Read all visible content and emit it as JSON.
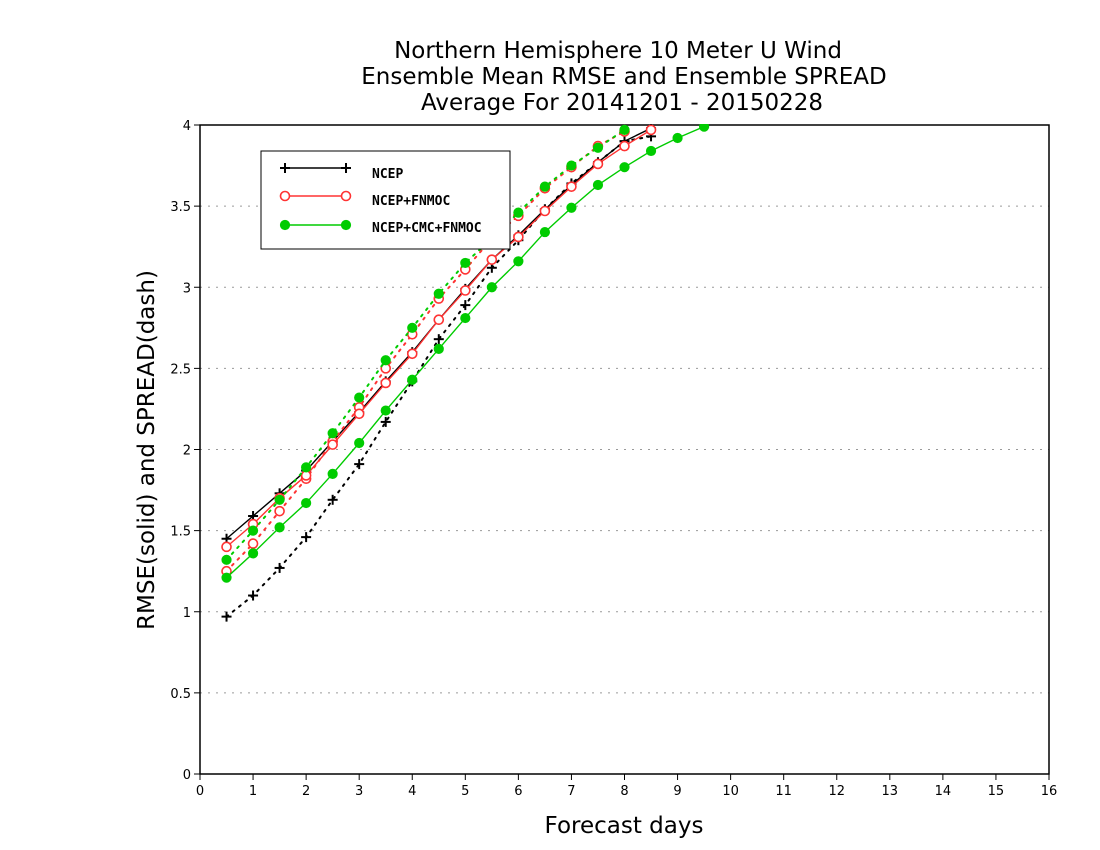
{
  "chart_data": {
    "type": "line",
    "title": [
      "Northern Hemisphere 10 Meter U Wind",
      "Ensemble Mean RMSE and Ensemble SPREAD",
      "Average For 20141201 - 20150228"
    ],
    "xlabel": "Forecast days",
    "ylabel": "RMSE(solid) and SPREAD(dash)",
    "xlim": [
      0,
      16
    ],
    "ylim": [
      0,
      4
    ],
    "xticks": [
      "0",
      "1",
      "2",
      "3",
      "4",
      "5",
      "6",
      "7",
      "8",
      "9",
      "10",
      "11",
      "12",
      "13",
      "14",
      "15",
      "16"
    ],
    "yticks": [
      "0",
      "0.5",
      "1",
      "1.5",
      "2",
      "2.5",
      "3",
      "3.5",
      "4"
    ],
    "grid": "horizontal dotted",
    "legend_position": "top-left",
    "series": [
      {
        "name": "NCEP",
        "color": "#000000",
        "marker": "plus",
        "rmse_x": [
          0.5,
          1,
          1.5,
          2,
          2.5,
          3,
          3.5,
          4,
          4.5,
          5,
          5.5,
          6,
          6.5,
          7,
          7.5,
          8,
          8.5
        ],
        "rmse_y": [
          1.45,
          1.59,
          1.73,
          1.87,
          2.05,
          2.23,
          2.42,
          2.6,
          2.8,
          2.99,
          3.17,
          3.32,
          3.48,
          3.63,
          3.77,
          3.9,
          3.98
        ],
        "spread_x": [
          0.5,
          1,
          1.5,
          2,
          2.5,
          3,
          3.5,
          4,
          4.5,
          5,
          5.5,
          6,
          6.5,
          7,
          7.5,
          8,
          8.5
        ],
        "spread_y": [
          0.97,
          1.1,
          1.27,
          1.46,
          1.69,
          1.91,
          2.17,
          2.42,
          2.68,
          2.89,
          3.12,
          3.29,
          3.48,
          3.64,
          3.77,
          3.9,
          3.93
        ]
      },
      {
        "name": "NCEP+FNMOC",
        "color": "#ff3333",
        "marker": "open-circle",
        "rmse_x": [
          0.5,
          1,
          1.5,
          2,
          2.5,
          3,
          3.5,
          4,
          4.5,
          5,
          5.5,
          6,
          6.5,
          7,
          7.5,
          8,
          8.5
        ],
        "rmse_y": [
          1.4,
          1.54,
          1.7,
          1.84,
          2.03,
          2.22,
          2.41,
          2.59,
          2.8,
          2.98,
          3.17,
          3.31,
          3.47,
          3.62,
          3.76,
          3.87,
          3.97
        ],
        "spread_x": [
          0.5,
          1,
          1.5,
          2,
          2.5,
          3,
          3.5,
          4,
          4.5,
          5,
          5.5,
          6,
          6.5,
          7,
          7.5,
          8
        ],
        "spread_y": [
          1.25,
          1.42,
          1.62,
          1.82,
          2.05,
          2.26,
          2.5,
          2.71,
          2.93,
          3.11,
          3.3,
          3.44,
          3.61,
          3.74,
          3.87,
          3.96
        ]
      },
      {
        "name": "NCEP+CMC+FNMOC",
        "color": "#00cc00",
        "marker": "filled-circle",
        "rmse_x": [
          0.5,
          1,
          1.5,
          2,
          2.5,
          3,
          3.5,
          4,
          4.5,
          5,
          5.5,
          6,
          6.5,
          7,
          7.5,
          8,
          8.5,
          9,
          9.5
        ],
        "rmse_y": [
          1.21,
          1.36,
          1.52,
          1.67,
          1.85,
          2.04,
          2.24,
          2.43,
          2.62,
          2.81,
          3.0,
          3.16,
          3.34,
          3.49,
          3.63,
          3.74,
          3.84,
          3.92,
          3.99
        ],
        "spread_x": [
          0.5,
          1,
          1.5,
          2,
          2.5,
          3,
          3.5,
          4,
          4.5,
          5,
          5.5,
          6,
          6.5,
          7,
          7.5,
          8
        ],
        "spread_y": [
          1.32,
          1.5,
          1.69,
          1.89,
          2.1,
          2.32,
          2.55,
          2.75,
          2.96,
          3.15,
          3.3,
          3.46,
          3.62,
          3.75,
          3.86,
          3.97
        ]
      }
    ]
  }
}
